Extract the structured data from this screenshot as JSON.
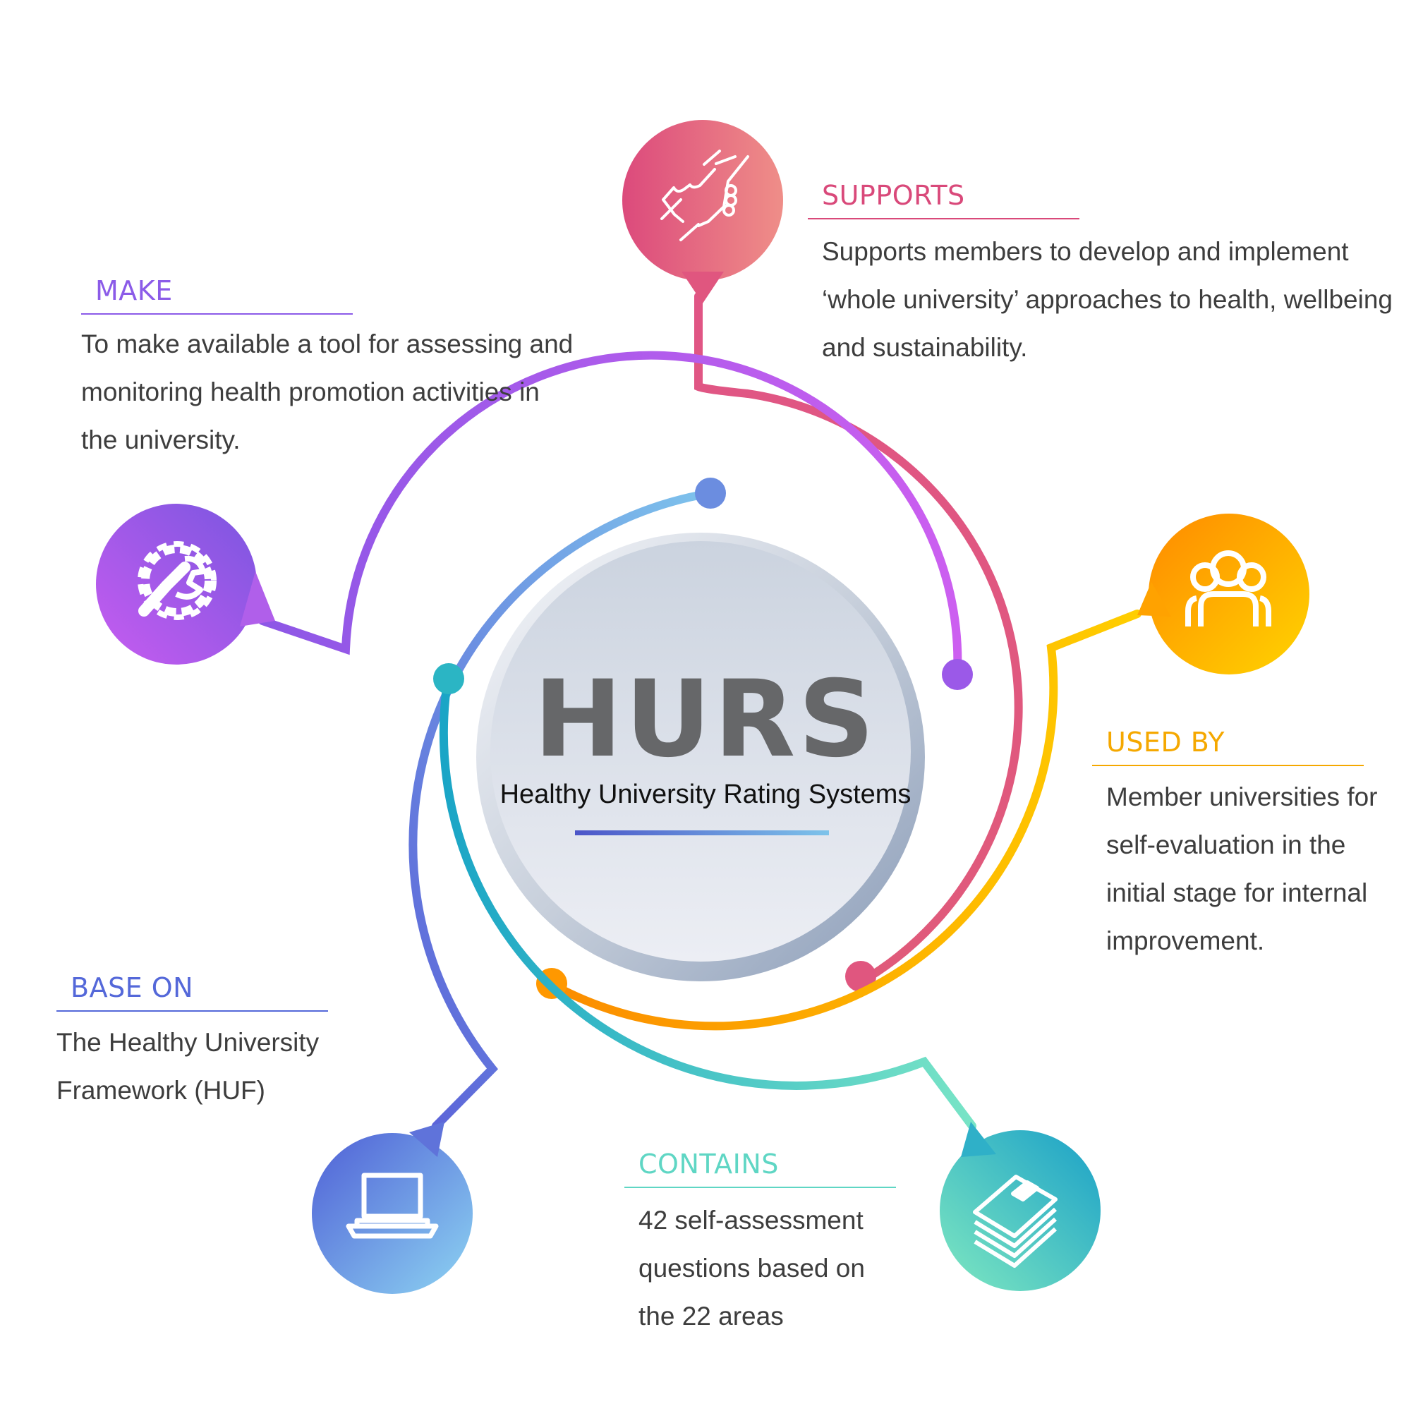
{
  "center": {
    "title": "HURS",
    "subtitle": "Healthy University Rating Systems"
  },
  "items": {
    "supports": {
      "heading": "SUPPORTS",
      "text": "Supports members to develop and implement\n‘whole university’ approaches to health, wellbeing\nand sustainability.",
      "color": "#d9497a",
      "icon": "handshake-icon"
    },
    "make": {
      "heading": "MAKE",
      "text": "To make available a tool for assessing and\nmonitoring health promotion activities in\nthe university.",
      "color": "#8b5be8",
      "icon": "gear-wrench-icon"
    },
    "used_by": {
      "heading": "USED BY",
      "text": "Member universities for\nself-evaluation in the\ninitial stage for internal\nimprovement.",
      "color": "#f5a800",
      "icon": "people-group-icon"
    },
    "base_on": {
      "heading": "BASE ON",
      "text": "The Healthy University\nFramework (HUF)",
      "color": "#5468d9",
      "icon": "laptop-icon"
    },
    "contains": {
      "heading": "CONTAINS",
      "text": "42 self-assessment\nquestions based on\nthe 22 areas",
      "color": "#5fd6c4",
      "icon": "books-icon"
    }
  }
}
